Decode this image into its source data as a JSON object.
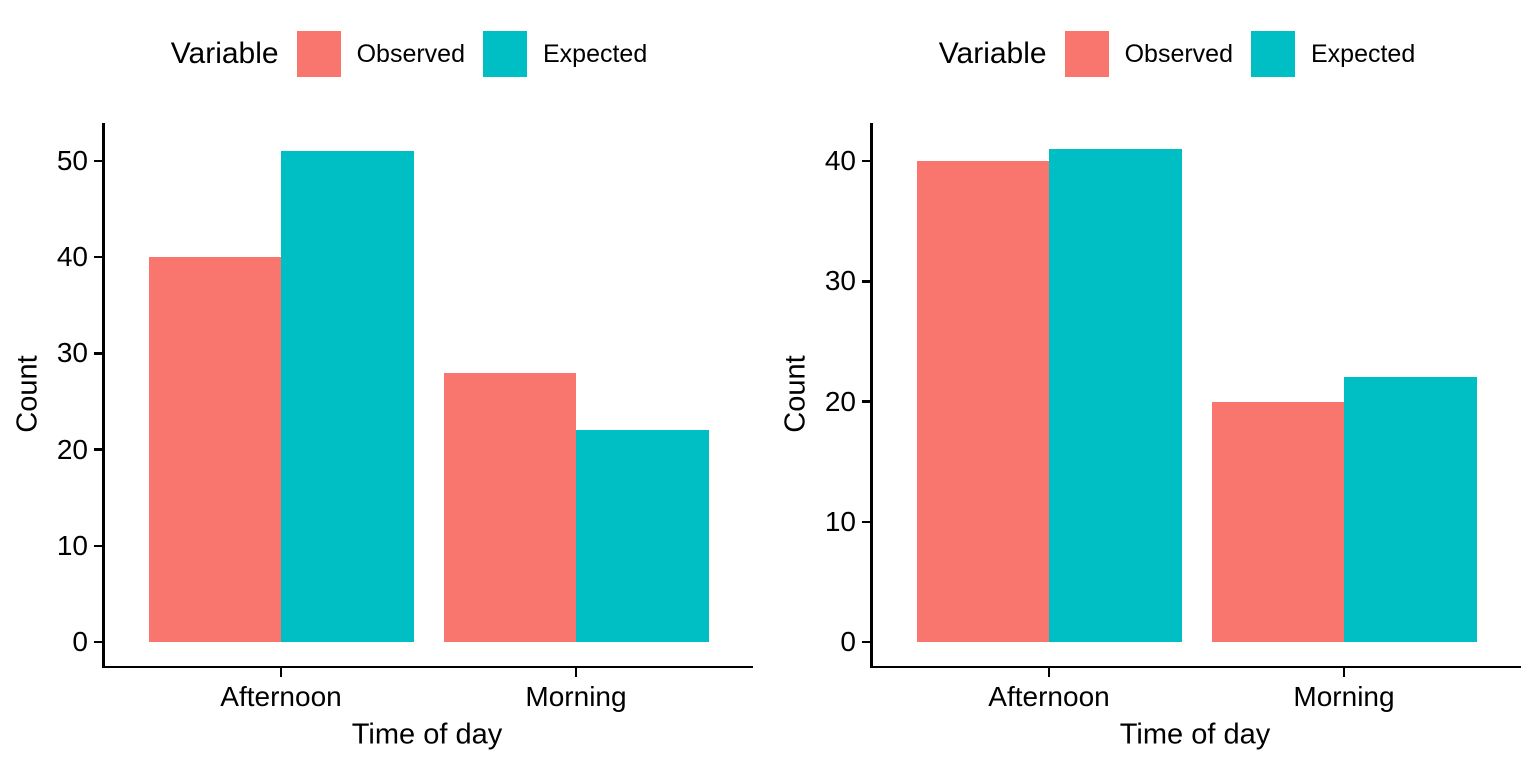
{
  "figure": {
    "background": "#FFFFFF"
  },
  "colors": {
    "observed": "#F8766D",
    "expected": "#00BFC4",
    "axis": "#000000"
  },
  "chart_data": [
    {
      "type": "bar",
      "title": "",
      "categories": [
        "Afternoon",
        "Morning"
      ],
      "series": [
        {
          "name": "Observed",
          "color": "#F8766D",
          "values": [
            40,
            28
          ]
        },
        {
          "name": "Expected",
          "color": "#00BFC4",
          "values": [
            51,
            22
          ]
        }
      ],
      "xlabel": "Time of day",
      "ylabel": "Count",
      "yticks": [
        0,
        10,
        20,
        30,
        40,
        50
      ],
      "ylim": [
        0,
        53.5
      ],
      "legend_title": "Variable",
      "legend_position": "top",
      "grid": false,
      "bar_mode": "dodge"
    },
    {
      "type": "bar",
      "title": "",
      "categories": [
        "Afternoon",
        "Morning"
      ],
      "series": [
        {
          "name": "Observed",
          "color": "#F8766D",
          "values": [
            40,
            20
          ]
        },
        {
          "name": "Expected",
          "color": "#00BFC4",
          "values": [
            41,
            22
          ]
        }
      ],
      "xlabel": "Time of day",
      "ylabel": "Count",
      "yticks": [
        0,
        10,
        20,
        30,
        40
      ],
      "ylim": [
        0,
        43
      ],
      "legend_title": "Variable",
      "legend_position": "top",
      "grid": false,
      "bar_mode": "dodge"
    }
  ]
}
